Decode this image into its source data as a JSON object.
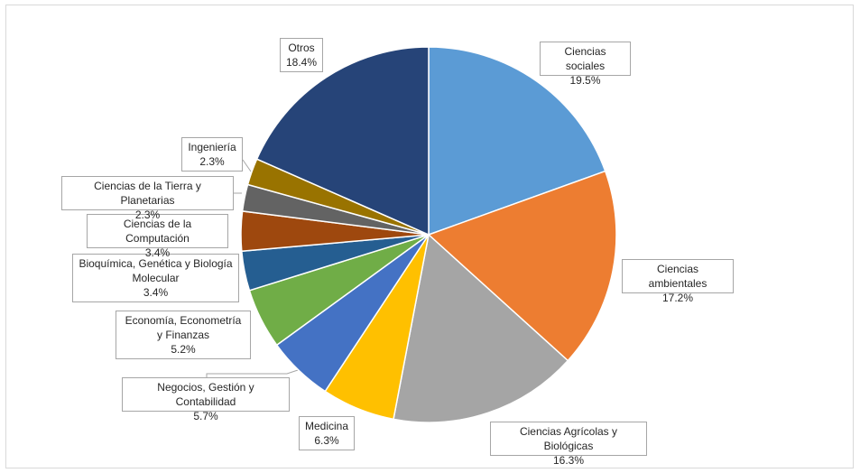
{
  "chart_data": {
    "type": "pie",
    "title": "",
    "slices": [
      {
        "label": "Ciencias sociales",
        "value": 19.5,
        "display": "19.5%",
        "color": "#5b9bd5"
      },
      {
        "label": "Ciencias ambientales",
        "value": 17.2,
        "display": "17.2%",
        "color": "#ed7d31"
      },
      {
        "label": "Ciencias Agrícolas y Biológicas",
        "value": 16.3,
        "display": "16.3%",
        "color": "#a5a5a5"
      },
      {
        "label": "Medicina",
        "value": 6.3,
        "display": "6.3%",
        "color": "#ffc000"
      },
      {
        "label": "Negocios, Gestión y Contabilidad",
        "value": 5.7,
        "display": "5.7%",
        "color": "#4472c4"
      },
      {
        "label": "Economía, Econometría y Finanzas",
        "value": 5.2,
        "display": "5.2%",
        "color": "#70ad47"
      },
      {
        "label": "Bioquímica, Genética y Biología Molecular",
        "value": 3.4,
        "display": "3.4%",
        "color": "#255e91"
      },
      {
        "label": "Ciencias de la Computación",
        "value": 3.4,
        "display": "3.4%",
        "color": "#9e480e"
      },
      {
        "label": "Ciencias de la Tierra y Planetarias",
        "value": 2.3,
        "display": "2.3%",
        "color": "#636363"
      },
      {
        "label": "Ingeniería",
        "value": 2.3,
        "display": "2.3%",
        "color": "#997300"
      },
      {
        "label": "Otros",
        "value": 18.4,
        "display": "18.4%",
        "color": "#264478"
      }
    ]
  }
}
